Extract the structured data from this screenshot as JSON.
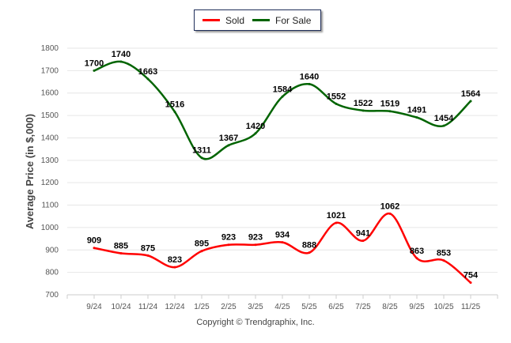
{
  "chart_data": {
    "type": "line",
    "title": "",
    "xlabel": "",
    "ylabel": "Average Price (in $,000)",
    "ylim": [
      700,
      1800
    ],
    "yticks": [
      700,
      800,
      900,
      1000,
      1100,
      1200,
      1300,
      1400,
      1500,
      1600,
      1700,
      1800
    ],
    "grid": true,
    "legend_position": "top-center",
    "categories": [
      "9/24",
      "10/24",
      "11/24",
      "12/24",
      "1/25",
      "2/25",
      "3/25",
      "4/25",
      "5/25",
      "6/25",
      "7/25",
      "8/25",
      "9/25",
      "10/25",
      "11/25"
    ],
    "series": [
      {
        "name": "Sold",
        "color": "#ff0000",
        "values": [
          909,
          885,
          875,
          823,
          895,
          923,
          923,
          934,
          888,
          1021,
          941,
          1062,
          863,
          853,
          754
        ]
      },
      {
        "name": "For Sale",
        "color": "#006400",
        "values": [
          1700,
          1740,
          1663,
          1516,
          1311,
          1367,
          1420,
          1584,
          1640,
          1552,
          1522,
          1519,
          1491,
          1454,
          1564
        ]
      }
    ]
  },
  "footer": {
    "copyright": "Copyright © Trendgraphix, Inc."
  }
}
